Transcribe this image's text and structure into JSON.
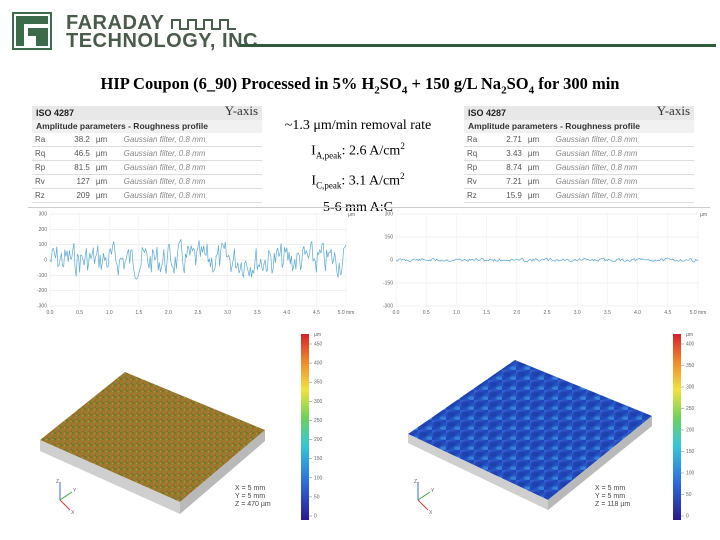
{
  "logo": {
    "line1": "FARADAY",
    "line2": "TECHNOLOGY, INC."
  },
  "title": {
    "pre": "HIP Coupon (6_90) Processed in 5% H",
    "sub1": "2",
    "mid1": "SO",
    "sub2": "4",
    "mid2": " + 150 g/L Na",
    "sub3": "2",
    "mid3": "SO",
    "sub4": "4",
    "post": " for 300 min"
  },
  "middle_text": {
    "removal": "~1.3 μm/min removal rate",
    "ia_pre": "I",
    "ia_sub": "A,peak",
    "ia_val": ": 2.6 A/cm",
    "ia_sup": "2",
    "ic_pre": "I",
    "ic_sub": "C,peak",
    "ic_val": ": 3.1 A/cm",
    "ic_sup": "2",
    "gap": "5-6 mm A:C"
  },
  "left_table": {
    "header": "ISO 4287",
    "yaxis": "Y-axis",
    "subheader": "Amplitude parameters - Roughness profile",
    "rows": [
      {
        "param": "Ra",
        "value": "38.2",
        "unit": "µm",
        "filter": "Gaussian filter, 0.8 mm"
      },
      {
        "param": "Rq",
        "value": "46.5",
        "unit": "µm",
        "filter": "Gaussian filter, 0.8 mm"
      },
      {
        "param": "Rp",
        "value": "81.5",
        "unit": "µm",
        "filter": "Gaussian filter, 0.8 mm"
      },
      {
        "param": "Rv",
        "value": "127",
        "unit": "µm",
        "filter": "Gaussian filter, 0.8 mm"
      },
      {
        "param": "Rz",
        "value": "209",
        "unit": "µm",
        "filter": "Gaussian filter, 0.8 mm"
      }
    ]
  },
  "right_table": {
    "header": "ISO 4287",
    "yaxis": "Y-axis",
    "subheader": "Amplitude parameters - Roughness profile",
    "rows": [
      {
        "param": "Ra",
        "value": "2.71",
        "unit": "µm",
        "filter": "Gaussian filter, 0.8 mm"
      },
      {
        "param": "Rq",
        "value": "3.43",
        "unit": "µm",
        "filter": "Gaussian filter, 0.8 mm"
      },
      {
        "param": "Rp",
        "value": "8.74",
        "unit": "µm",
        "filter": "Gaussian filter, 0.8 mm"
      },
      {
        "param": "Rv",
        "value": "7.21",
        "unit": "µm",
        "filter": "Gaussian filter, 0.8 mm"
      },
      {
        "param": "Rz",
        "value": "15.9",
        "unit": "µm",
        "filter": "Gaussian filter, 0.8 mm"
      }
    ]
  },
  "left_profile": {
    "yticks": [
      "300",
      "200",
      "100",
      "0",
      "-100",
      "-200",
      "-300"
    ],
    "xticks": [
      "0.0",
      "0.5",
      "1.0",
      "1.5",
      "2.0",
      "2.5",
      "3.0",
      "3.5",
      "4.0",
      "4.5",
      "5.0 mm"
    ],
    "unit": "µm"
  },
  "right_profile": {
    "yticks": [
      "300",
      "150",
      "0",
      "-150",
      "-300"
    ],
    "xticks": [
      "0.0",
      "0.5",
      "1.0",
      "1.5",
      "2.0",
      "2.5",
      "3.0",
      "3.5",
      "4.0",
      "4.5",
      "5.0 mm"
    ],
    "unit": "µm"
  },
  "left_3d": {
    "x": "X = 5 mm",
    "y": "Y = 5 mm",
    "z": "Z = 470 µm",
    "colorbar_ticks": [
      "450",
      "400",
      "350",
      "300",
      "250",
      "200",
      "150",
      "100",
      "50",
      "0"
    ],
    "colorbar_unit": "µm"
  },
  "right_3d": {
    "x": "X = 5 mm",
    "y": "Y = 5 mm",
    "z": "Z = 118 µm",
    "colorbar_ticks": [
      "400",
      "350",
      "300",
      "250",
      "200",
      "150",
      "100",
      "50",
      "0"
    ],
    "colorbar_unit": "µm"
  },
  "colors": {
    "brand_green": "#3b6b4a",
    "rule": "#2f5a3c",
    "profile_line": "#5aa9d6"
  }
}
